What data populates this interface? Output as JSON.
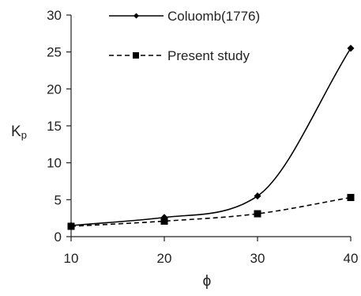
{
  "chart_data": {
    "type": "line",
    "x": [
      10,
      20,
      30,
      40
    ],
    "series": [
      {
        "name": "Coluomb(1776)",
        "values": [
          1.5,
          2.6,
          5.5,
          25.5
        ],
        "line": "solid",
        "marker": "diamond",
        "smooth": true
      },
      {
        "name": "Present study",
        "values": [
          1.4,
          2.1,
          3.1,
          5.3
        ],
        "line": "dashed",
        "marker": "square",
        "smooth": true
      }
    ],
    "xlabel": "ϕ",
    "ylabel_main": "K",
    "ylabel_sub": "p",
    "xlim": [
      10,
      40
    ],
    "ylim": [
      0,
      30
    ],
    "xticks": [
      "10",
      "20",
      "30",
      "40"
    ],
    "yticks": [
      "0",
      "5",
      "10",
      "15",
      "20",
      "25",
      "30"
    ],
    "grid": false,
    "legend_position": "top-center",
    "color": "#000000"
  }
}
